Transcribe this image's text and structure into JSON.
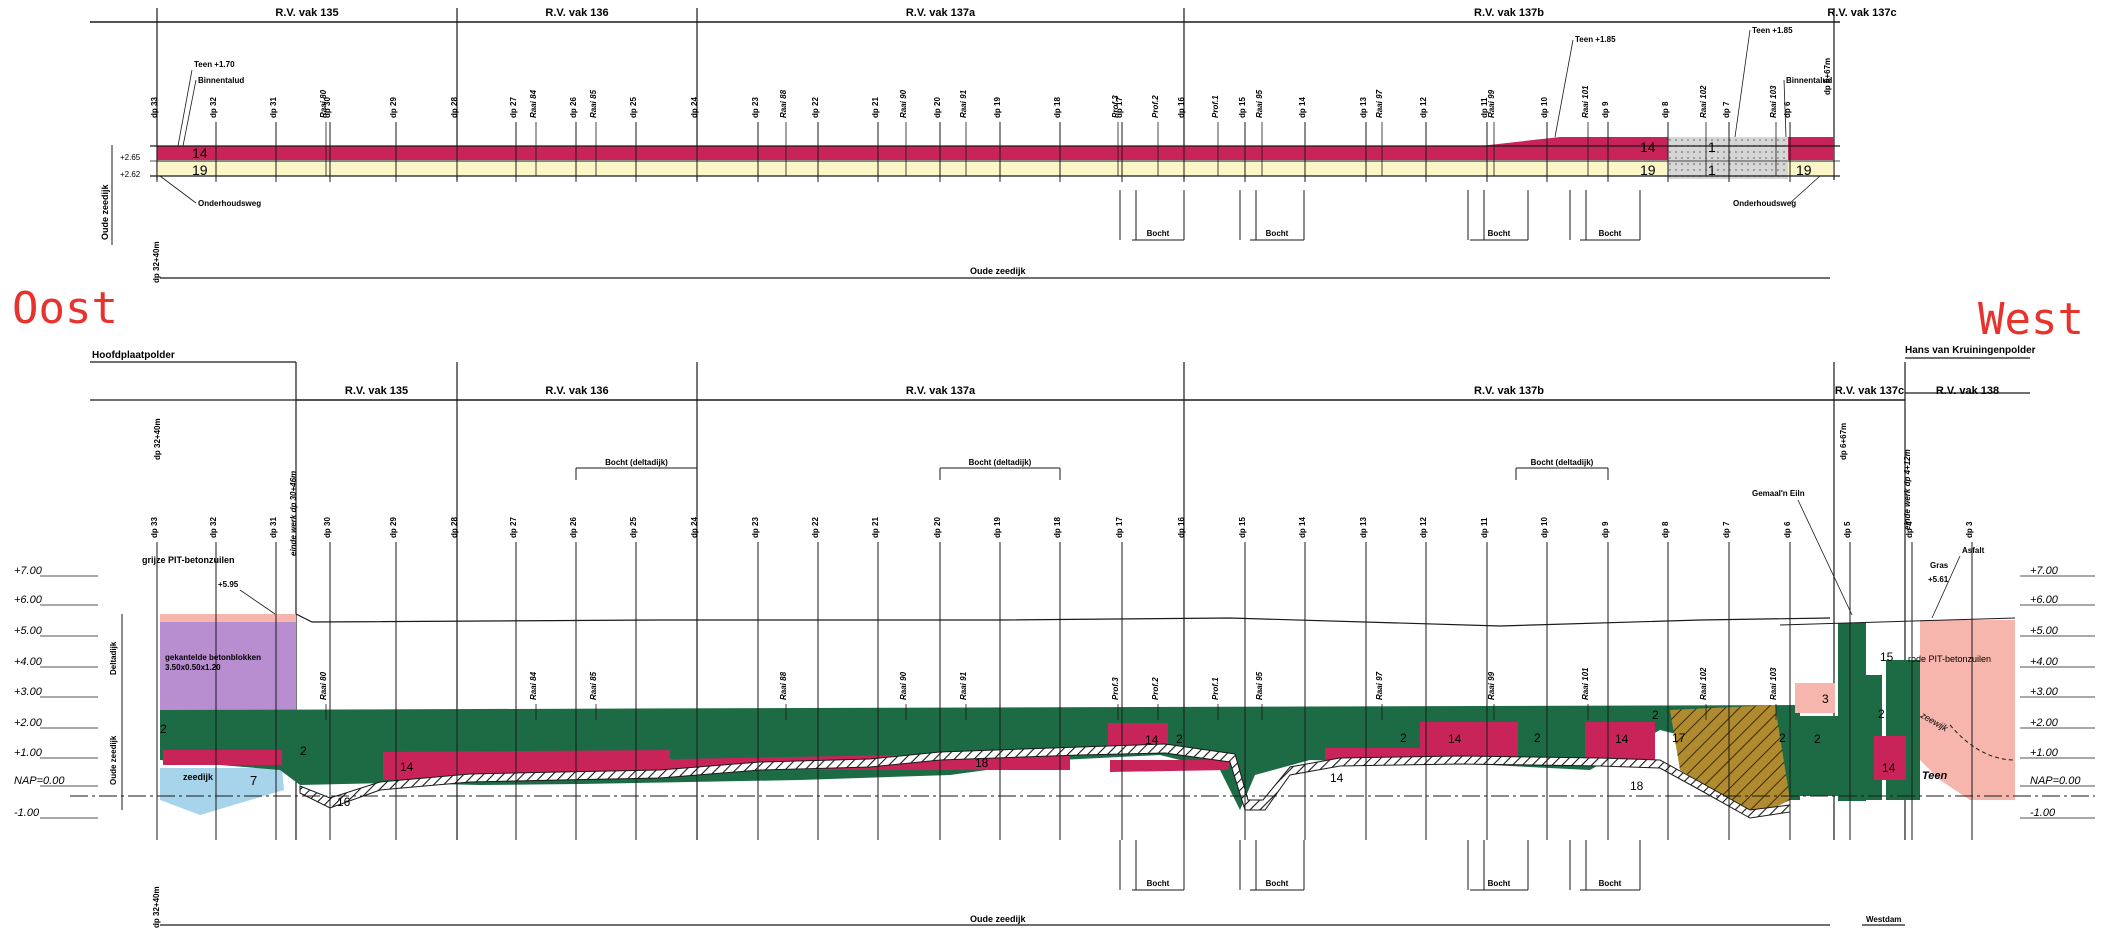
{
  "labels": {
    "oost": "Oost",
    "west": "West",
    "hoofdplaatpolder": "Hoofdplaatpolder",
    "hans_van_kruiningenpolder": "Hans van Kruiningenpolder",
    "oude_zeedijk": "Oude zeedijk",
    "westdam": "Westdam",
    "bocht": "Bocht",
    "bocht_deltadijk": "Bocht (deltadijk)",
    "onderhoudsweg": "Onderhoudsweg",
    "binnentalud": "Binnentalud",
    "teen_top_east": "Teen +1.70",
    "teen_top_west": "Teen +1.85",
    "teen_top_west2": "Teen +1.85",
    "teen_bottom": "Teen",
    "level_265": "+2.65",
    "level_262": "+2.62",
    "deltadijk": "Deltadijk",
    "grijze_pit": "grijze PIT-betonzuilen",
    "gekantelde": "gekantelde betonblokken",
    "gekantelde_dim": "3.50x0.50x1.20",
    "zeedijk": "zeedijk",
    "plus_595": "+5.95",
    "plus_561": "+5.61",
    "gemaal": "Gemaal'n Eiln",
    "gras": "Gras",
    "asfalt": "Asfalt",
    "rode_pit": "rode PIT-betonzuilen",
    "zeewijk": "zeewijk",
    "einde_werk_east": "einde werk dp 30+46m",
    "einde_werk_west": "einde werk dp 4+12m",
    "dp_32_40m": "dp 32+40m",
    "dp_6_67m": "dp 6+67m"
  },
  "top_sections": [
    "R.V. vak 135",
    "R.V. vak 136",
    "R.V. vak 137a",
    "R.V. vak 137b",
    "R.V. vak 137c"
  ],
  "bottom_sections": [
    "R.V. vak 135",
    "R.V. vak 136",
    "R.V. vak 137a",
    "R.V. vak 137b",
    "R.V. vak 137c",
    "R.V. vak 138"
  ],
  "dp_labels": [
    "dp 33",
    "dp 32",
    "dp 31",
    "dp 30",
    "dp 29",
    "dp 28",
    "dp 27",
    "dp 26",
    "dp 25",
    "dp 24",
    "dp 23",
    "dp 22",
    "dp 21",
    "dp 20",
    "dp 19",
    "dp 18",
    "dp 17",
    "dp 16",
    "dp 15",
    "dp 14",
    "dp 13",
    "dp 12",
    "dp 11",
    "dp 10",
    "dp 9",
    "dp 8",
    "dp 7",
    "dp 6",
    "dp 5",
    "dp 4",
    "dp 3"
  ],
  "raai_labels": [
    "Raai 80",
    "Raai 84",
    "Raai 85",
    "Raai 88",
    "Raai 90",
    "Raai 91",
    "Prof.3",
    "Prof.2",
    "Prof.1",
    "Raai 95",
    "Raai 97",
    "Raai 99",
    "Raai 101",
    "Raai 102",
    "Raai 103"
  ],
  "levels": [
    "+7.00",
    "+6.00",
    "+5.00",
    "+4.00",
    "+3.00",
    "+2.00",
    "+1.00",
    "NAP=0.00",
    "-1.00"
  ],
  "zone_numbers": {
    "n14": "14",
    "n19": "19",
    "n1": "1",
    "n2": "2",
    "n3": "3",
    "n7": "7",
    "n15": "15",
    "n17": "17",
    "n18": "18",
    "n16": "16"
  },
  "colors": {
    "line": "#1a1a1a",
    "crimson": "#c8245a",
    "green": "#1d6b45",
    "cream": "#fbf6c8",
    "purple": "#b98ed0",
    "blue": "#a7d4ea",
    "pink": "#f6b6ae",
    "hatch_brown": "#b08a2e",
    "gray_dot": "#cfcfcf",
    "red_text": "#e8322c"
  }
}
